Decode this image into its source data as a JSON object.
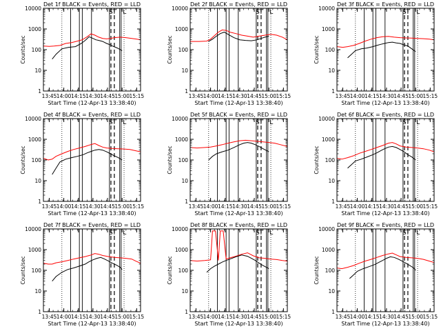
{
  "figure": {
    "x_tick_labels": [
      "13:45",
      "14:00",
      "14:15",
      "14:30",
      "14:45",
      "15:00",
      "15:15"
    ],
    "xlabel": "Start Time (12-Apr-13 13:38:40)",
    "ylabel": "Counts/sec",
    "y_tick_labels": [
      "1",
      "10",
      "100",
      "1000",
      "10000"
    ],
    "markers": {
      "s": "S",
      "t": "T",
      "l": "L"
    },
    "colors": {
      "events": "#000000",
      "lld": "#ff0000",
      "axes": "#000000",
      "background": "#ffffff"
    }
  },
  "chart_data": [
    {
      "type": "line",
      "title": "Det 1f BLACK = Events, RED = LLD",
      "xlabel": "Start Time (12-Apr-13 13:38:40)",
      "ylabel": "Counts/sec",
      "xlim": [
        "13:39",
        "15:19"
      ],
      "ylim": [
        1,
        10000
      ],
      "yscale": "log",
      "grid": false,
      "series": [
        {
          "name": "Events",
          "color": "#000000",
          "x": [
            "13:48",
            "13:52",
            "13:58",
            "14:05",
            "14:12",
            "14:18",
            "14:22",
            "14:26",
            "14:30",
            "14:33",
            "14:36",
            "14:40",
            "14:44",
            "14:48",
            "14:50",
            "14:55",
            "15:00"
          ],
          "y": [
            35,
            60,
            110,
            130,
            140,
            200,
            280,
            420,
            350,
            300,
            280,
            250,
            200,
            170,
            150,
            120,
            90
          ]
        },
        {
          "name": "LLD",
          "color": "#ff0000",
          "x": [
            "13:39",
            "13:45",
            "13:50",
            "13:56",
            "14:02",
            "14:08",
            "14:14",
            "14:19",
            "14:24",
            "14:28",
            "14:32",
            "14:36",
            "14:40",
            "14:44",
            "14:48",
            "14:52",
            "14:58",
            "15:04",
            "15:10",
            "15:15",
            "15:19"
          ],
          "y": [
            150,
            145,
            150,
            160,
            200,
            220,
            260,
            300,
            420,
            580,
            500,
            400,
            350,
            330,
            350,
            380,
            400,
            380,
            350,
            320,
            300
          ]
        }
      ]
    },
    {
      "type": "line",
      "title": "Det 2f BLACK = Events, RED = LLD",
      "xlabel": "Start Time (12-Apr-13 13:38:40)",
      "ylabel": "Counts/sec",
      "xlim": [
        "13:39",
        "15:19"
      ],
      "ylim": [
        1,
        10000
      ],
      "yscale": "log",
      "grid": false,
      "series": [
        {
          "name": "Events",
          "color": "#000000",
          "x": [
            "13:58",
            "14:02",
            "14:06",
            "14:10",
            "14:14",
            "14:18",
            "14:24",
            "14:30",
            "14:36",
            "14:42",
            "14:48",
            "14:52",
            "14:56",
            "15:00"
          ],
          "y": [
            250,
            320,
            450,
            600,
            700,
            550,
            380,
            300,
            280,
            270,
            300,
            350,
            400,
            450
          ]
        },
        {
          "name": "LLD",
          "color": "#ff0000",
          "x": [
            "13:39",
            "13:48",
            "13:56",
            "14:00",
            "14:04",
            "14:08",
            "14:12",
            "14:16",
            "14:20",
            "14:26",
            "14:32",
            "14:38",
            "14:44",
            "14:50",
            "14:56",
            "15:02",
            "15:08",
            "15:14",
            "15:19"
          ],
          "y": [
            250,
            250,
            260,
            320,
            480,
            700,
            900,
            850,
            700,
            600,
            500,
            450,
            400,
            450,
            500,
            550,
            500,
            400,
            300
          ]
        }
      ]
    },
    {
      "type": "line",
      "title": "Det 3f BLACK = Events, RED = LLD",
      "xlabel": "Start Time (12-Apr-13 13:38:40)",
      "ylabel": "Counts/sec",
      "xlim": [
        "13:39",
        "15:19"
      ],
      "ylim": [
        1,
        10000
      ],
      "yscale": "log",
      "grid": false,
      "series": [
        {
          "name": "Events",
          "color": "#000000",
          "x": [
            "13:50",
            "13:54",
            "13:58",
            "14:04",
            "14:10",
            "14:16",
            "14:20",
            "14:24",
            "14:28",
            "14:32",
            "14:36",
            "14:40",
            "14:44",
            "14:48",
            "14:52",
            "14:56",
            "15:00"
          ],
          "y": [
            40,
            60,
            90,
            110,
            120,
            140,
            160,
            180,
            200,
            220,
            230,
            210,
            200,
            170,
            150,
            110,
            80
          ]
        },
        {
          "name": "LLD",
          "color": "#ff0000",
          "x": [
            "13:39",
            "13:45",
            "13:50",
            "13:56",
            "14:02",
            "14:08",
            "14:14",
            "14:20",
            "14:26",
            "14:32",
            "14:38",
            "14:44",
            "14:50",
            "14:56",
            "15:02",
            "15:08",
            "15:14",
            "15:19"
          ],
          "y": [
            140,
            130,
            140,
            160,
            200,
            260,
            320,
            380,
            420,
            440,
            400,
            380,
            370,
            360,
            350,
            340,
            320,
            300
          ]
        }
      ]
    },
    {
      "type": "line",
      "title": "Det 4f BLACK = Events, RED = LLD",
      "xlabel": "Start Time (12-Apr-13 13:38:40)",
      "ylabel": "Counts/sec",
      "xlim": [
        "13:39",
        "15:19"
      ],
      "ylim": [
        1,
        10000
      ],
      "yscale": "log",
      "grid": false,
      "series": [
        {
          "name": "Events",
          "color": "#000000",
          "x": [
            "13:48",
            "13:52",
            "13:56",
            "14:02",
            "14:08",
            "14:14",
            "14:20",
            "14:24",
            "14:28",
            "14:32",
            "14:36",
            "14:40",
            "14:44",
            "14:48",
            "14:52",
            "14:56",
            "15:00"
          ],
          "y": [
            20,
            40,
            80,
            110,
            130,
            150,
            180,
            220,
            260,
            300,
            320,
            300,
            250,
            200,
            160,
            130,
            100
          ]
        },
        {
          "name": "LLD",
          "color": "#ff0000",
          "x": [
            "13:39",
            "13:44",
            "13:48",
            "13:52",
            "13:58",
            "14:04",
            "14:10",
            "14:16",
            "14:22",
            "14:28",
            "14:32",
            "14:36",
            "14:40",
            "14:44",
            "14:50",
            "14:56",
            "15:02",
            "15:08",
            "15:14",
            "15:19"
          ],
          "y": [
            120,
            100,
            110,
            150,
            200,
            260,
            320,
            380,
            450,
            560,
            620,
            500,
            420,
            380,
            360,
            350,
            340,
            320,
            280,
            250
          ]
        }
      ]
    },
    {
      "type": "line",
      "title": "Det 5f BLACK = Events, RED = LLD",
      "xlabel": "Start Time (12-Apr-13 13:38:40)",
      "ylabel": "Counts/sec",
      "xlim": [
        "13:39",
        "15:19"
      ],
      "ylim": [
        1,
        10000
      ],
      "yscale": "log",
      "grid": false,
      "series": [
        {
          "name": "Events",
          "color": "#000000",
          "x": [
            "13:58",
            "14:02",
            "14:06",
            "14:12",
            "14:18",
            "14:24",
            "14:30",
            "14:34",
            "14:38",
            "14:42",
            "14:46",
            "14:50",
            "14:54",
            "15:00"
          ],
          "y": [
            100,
            150,
            200,
            250,
            300,
            400,
            550,
            650,
            700,
            650,
            550,
            450,
            350,
            250
          ]
        },
        {
          "name": "LLD",
          "color": "#ff0000",
          "x": [
            "13:39",
            "13:46",
            "13:54",
            "14:00",
            "14:06",
            "14:12",
            "14:18",
            "14:24",
            "14:30",
            "14:36",
            "14:42",
            "14:48",
            "14:54",
            "15:00",
            "15:06",
            "15:12",
            "15:19"
          ],
          "y": [
            400,
            380,
            400,
            420,
            480,
            550,
            650,
            750,
            850,
            900,
            850,
            800,
            750,
            700,
            650,
            550,
            450
          ]
        }
      ]
    },
    {
      "type": "line",
      "title": "Det 6f BLACK = Events, RED = LLD",
      "xlabel": "Start Time (12-Apr-13 13:38:40)",
      "ylabel": "Counts/sec",
      "xlim": [
        "13:39",
        "15:19"
      ],
      "ylim": [
        1,
        10000
      ],
      "yscale": "log",
      "grid": false,
      "series": [
        {
          "name": "Events",
          "color": "#000000",
          "x": [
            "13:50",
            "13:54",
            "13:58",
            "14:04",
            "14:10",
            "14:16",
            "14:20",
            "14:24",
            "14:28",
            "14:32",
            "14:36",
            "14:40",
            "14:44",
            "14:48",
            "14:52",
            "14:56",
            "15:00"
          ],
          "y": [
            40,
            60,
            90,
            110,
            140,
            180,
            220,
            280,
            350,
            420,
            450,
            400,
            320,
            250,
            180,
            140,
            100
          ]
        },
        {
          "name": "LLD",
          "color": "#ff0000",
          "x": [
            "13:39",
            "13:44",
            "13:50",
            "13:56",
            "14:02",
            "14:08",
            "14:14",
            "14:20",
            "14:26",
            "14:32",
            "14:36",
            "14:40",
            "14:44",
            "14:50",
            "14:56",
            "15:02",
            "15:08",
            "15:14",
            "15:19"
          ],
          "y": [
            120,
            110,
            130,
            160,
            210,
            260,
            320,
            400,
            500,
            650,
            700,
            600,
            480,
            420,
            400,
            380,
            350,
            300,
            250
          ]
        }
      ]
    },
    {
      "type": "line",
      "title": "Det 7f BLACK = Events, RED = LLD",
      "xlabel": "Start Time (12-Apr-13 13:38:40)",
      "ylabel": "Counts/sec",
      "xlim": [
        "13:39",
        "15:19"
      ],
      "ylim": [
        1,
        10000
      ],
      "yscale": "log",
      "grid": false,
      "series": [
        {
          "name": "Events",
          "color": "#000000",
          "x": [
            "13:48",
            "13:52",
            "13:58",
            "14:04",
            "14:10",
            "14:16",
            "14:22",
            "14:26",
            "14:30",
            "14:34",
            "14:38",
            "14:42",
            "14:46",
            "14:50",
            "14:54",
            "14:58",
            "15:00"
          ],
          "y": [
            30,
            50,
            80,
            110,
            130,
            160,
            200,
            260,
            320,
            380,
            420,
            350,
            280,
            220,
            180,
            140,
            110
          ]
        },
        {
          "name": "LLD",
          "color": "#ff0000",
          "x": [
            "13:39",
            "13:44",
            "13:48",
            "13:52",
            "13:58",
            "14:04",
            "14:10",
            "14:16",
            "14:22",
            "14:28",
            "14:32",
            "14:36",
            "14:40",
            "14:46",
            "14:52",
            "14:58",
            "15:04",
            "15:10",
            "15:14",
            "15:19"
          ],
          "y": [
            220,
            200,
            200,
            230,
            260,
            300,
            350,
            400,
            460,
            550,
            650,
            600,
            520,
            460,
            420,
            400,
            380,
            350,
            280,
            220
          ]
        }
      ]
    },
    {
      "type": "line",
      "title": "Det 8f BLACK = Events, RED = LLD",
      "xlabel": "Start Time (12-Apr-13 13:38:40)",
      "ylabel": "Counts/sec",
      "xlim": [
        "13:39",
        "15:19"
      ],
      "ylim": [
        1,
        10000
      ],
      "yscale": "log",
      "grid": false,
      "series": [
        {
          "name": "Events",
          "color": "#000000",
          "x": [
            "13:56",
            "14:00",
            "14:04",
            "14:08",
            "14:12",
            "14:16",
            "14:20",
            "14:26",
            "14:32",
            "14:38",
            "14:42",
            "14:46",
            "14:50",
            "14:54",
            "15:00"
          ],
          "y": [
            80,
            120,
            160,
            200,
            250,
            300,
            350,
            450,
            550,
            480,
            380,
            300,
            220,
            170,
            120
          ]
        },
        {
          "name": "LLD",
          "color": "#ff0000",
          "x": [
            "13:39",
            "13:46",
            "13:54",
            "14:00",
            "14:02",
            "14:05",
            "14:08",
            "14:10",
            "14:13",
            "14:16",
            "14:20",
            "14:26",
            "14:32",
            "14:38",
            "14:44",
            "14:50",
            "14:56",
            "15:02",
            "15:08",
            "15:14",
            "15:19"
          ],
          "y": [
            300,
            280,
            300,
            320,
            8000,
            8000,
            300,
            8000,
            8000,
            350,
            400,
            480,
            600,
            700,
            500,
            400,
            380,
            350,
            330,
            300,
            280
          ]
        }
      ]
    },
    {
      "type": "line",
      "title": "Det 9f BLACK = Events, RED = LLD",
      "xlabel": "Start Time (12-Apr-13 13:38:40)",
      "ylabel": "Counts/sec",
      "xlim": [
        "13:39",
        "15:19"
      ],
      "ylim": [
        1,
        10000
      ],
      "yscale": "log",
      "grid": false,
      "series": [
        {
          "name": "Events",
          "color": "#000000",
          "x": [
            "13:52",
            "13:56",
            "14:00",
            "14:06",
            "14:12",
            "14:18",
            "14:22",
            "14:26",
            "14:30",
            "14:34",
            "14:38",
            "14:42",
            "14:46",
            "14:50",
            "14:54",
            "14:58",
            "15:00"
          ],
          "y": [
            40,
            60,
            90,
            120,
            150,
            190,
            240,
            300,
            380,
            450,
            420,
            350,
            280,
            220,
            170,
            130,
            100
          ]
        },
        {
          "name": "LLD",
          "color": "#ff0000",
          "x": [
            "13:39",
            "13:44",
            "13:50",
            "13:56",
            "14:02",
            "14:08",
            "14:14",
            "14:20",
            "14:26",
            "14:32",
            "14:36",
            "14:40",
            "14:44",
            "14:50",
            "14:56",
            "15:02",
            "15:08",
            "15:14",
            "15:19"
          ],
          "y": [
            130,
            120,
            140,
            170,
            220,
            280,
            340,
            420,
            520,
            620,
            680,
            560,
            460,
            420,
            400,
            380,
            340,
            280,
            240
          ]
        }
      ]
    }
  ]
}
